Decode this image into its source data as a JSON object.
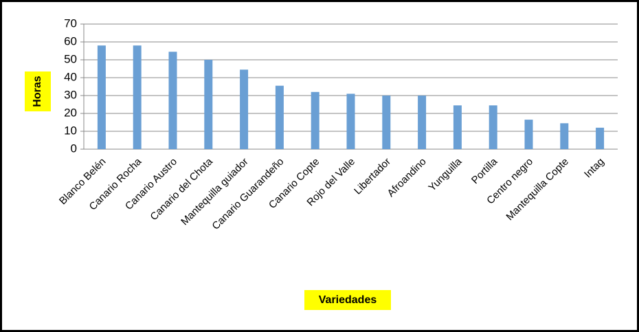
{
  "chart_data": {
    "type": "bar",
    "categories": [
      "Blanco Belén",
      "Canario Rocha",
      "Canario Austro",
      "Canario del Chota",
      "Mantequilla guiador",
      "Canario Guarandeño",
      "Canario Copte",
      "Rojo del Valle",
      "Libertador",
      "Afroandino",
      "Yunguilla",
      "Portilla",
      "Centro negro",
      "Mantequilla Copte",
      "Intag"
    ],
    "values": [
      58,
      58,
      54.5,
      50,
      44.5,
      35.5,
      32,
      31,
      30,
      30,
      24.5,
      24.5,
      16.5,
      14.5,
      12
    ],
    "color": "#6a9fd4",
    "y_label": "Horas",
    "x_label": "Variedades",
    "ylim": [
      0,
      70
    ],
    "yticks": [
      0,
      10,
      20,
      30,
      40,
      50,
      60,
      70
    ],
    "grid": true
  }
}
